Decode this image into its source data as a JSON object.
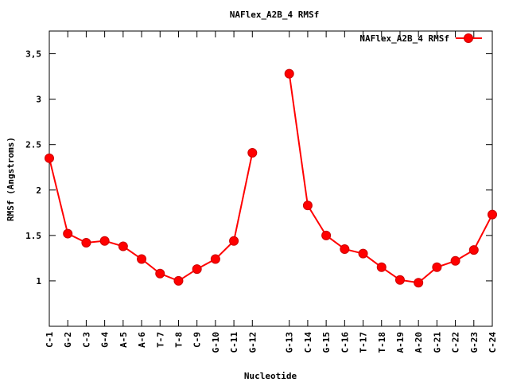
{
  "chart_data": {
    "type": "line",
    "title": "NAFlex_A2B_4 RMSf",
    "xlabel": "Nucleotide",
    "ylabel": "RMSf (Angstroms)",
    "ylim": [
      0.5,
      3.75
    ],
    "yticks": [
      "1",
      "1.5",
      "2",
      "2.5",
      "3",
      "3,5"
    ],
    "ytick_values": [
      1,
      1.5,
      2,
      2.5,
      3,
      3.5
    ],
    "xlim": [
      1,
      25
    ],
    "grid": false,
    "legend_position": "top-right",
    "colors": {
      "series": "#ff0000",
      "marker_edge": "#cc0000"
    },
    "categories": [
      "C-1",
      "G-2",
      "C-3",
      "G-4",
      "A-5",
      "A-6",
      "T-7",
      "T-8",
      "C-9",
      "G-10",
      "C-11",
      "G-12",
      "G-13",
      "C-14",
      "G-15",
      "C-16",
      "T-17",
      "T-18",
      "A-19",
      "A-20",
      "G-21",
      "C-22",
      "G-23",
      "C-24"
    ],
    "x": [
      1,
      2,
      3,
      4,
      5,
      6,
      7,
      8,
      9,
      10,
      11,
      12,
      14,
      15,
      16,
      17,
      18,
      19,
      20,
      21,
      22,
      23,
      24,
      25
    ],
    "series": [
      {
        "name": "NAFlex_A2B_4 RMSf",
        "segments": [
          [
            0,
            11
          ],
          [
            12,
            23
          ]
        ],
        "values": [
          2.35,
          1.52,
          1.42,
          1.44,
          1.38,
          1.24,
          1.08,
          1.0,
          1.13,
          1.24,
          1.44,
          2.41,
          3.28,
          1.83,
          1.5,
          1.35,
          1.3,
          1.15,
          1.01,
          0.98,
          1.15,
          1.22,
          1.34,
          1.73
        ]
      }
    ]
  }
}
